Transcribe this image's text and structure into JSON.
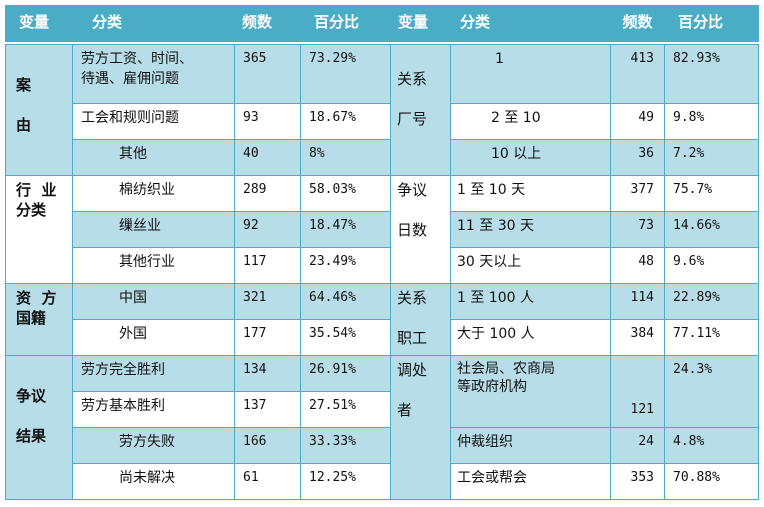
{
  "header": {
    "left": {
      "variable": "变量",
      "category": "分类",
      "count": "频数",
      "percent": "百分比"
    },
    "right": {
      "variable": "变量",
      "category": "分类",
      "count": "频数",
      "percent": "百分比"
    }
  },
  "left": [
    {
      "variable": "案\n\n由",
      "rows": [
        {
          "category": "劳方工资、时间、\n待遇、雇佣问题",
          "count": "365",
          "percent": "73.29%"
        },
        {
          "category": "工会和规则问题",
          "count": "93",
          "percent": "18.67%"
        },
        {
          "category": "其他",
          "count": "40",
          "percent": "8%"
        }
      ]
    },
    {
      "variable": "行  业\n分类",
      "rows": [
        {
          "category": "棉纺织业",
          "count": "289",
          "percent": "58.03%"
        },
        {
          "category": "缫丝业",
          "count": "92",
          "percent": "18.47%"
        },
        {
          "category": "其他行业",
          "count": "117",
          "percent": "23.49%"
        }
      ]
    },
    {
      "variable": "资  方\n国籍",
      "rows": [
        {
          "category": "中国",
          "count": "321",
          "percent": "64.46%"
        },
        {
          "category": "外国",
          "count": "177",
          "percent": "35.54%"
        }
      ]
    },
    {
      "variable": "争议\n\n结果",
      "rows": [
        {
          "category": "劳方完全胜利",
          "count": "134",
          "percent": "26.91%"
        },
        {
          "category": "劳方基本胜利",
          "count": "137",
          "percent": "27.51%"
        },
        {
          "category": "劳方失败",
          "count": "166",
          "percent": "33.33%"
        },
        {
          "category": "尚未解决",
          "count": "61",
          "percent": "12.25%"
        }
      ]
    }
  ],
  "right": [
    {
      "variable": "\n关系\n\n厂号",
      "rows": [
        {
          "category": "1",
          "count": "413",
          "percent": "82.93%"
        },
        {
          "category": "2 至 10",
          "count": "49",
          "percent": "9.8%"
        },
        {
          "category": "10 以上",
          "count": "36",
          "percent": "7.2%"
        }
      ]
    },
    {
      "variable": "争议\n\n日数",
      "rows": [
        {
          "category": "1 至 10 天",
          "count": "377",
          "percent": "75.7%"
        },
        {
          "category": "11 至 30 天",
          "count": "73",
          "percent": "14.66%"
        },
        {
          "category": "30 天以上",
          "count": "48",
          "percent": "9.6%"
        }
      ]
    },
    {
      "variable": "关系\n\n职工",
      "rows": [
        {
          "category": "1 至 100 人",
          "count": "114",
          "percent": "22.89%"
        },
        {
          "category": "大于 100 人",
          "count": "384",
          "percent": "77.11%"
        }
      ]
    },
    {
      "variable": "调处\n\n者",
      "rows": [
        {
          "category": "社会局、农商局\n等政府机构",
          "count": "\n\n121",
          "percent": "24.3%"
        },
        {
          "category": "仲裁组织",
          "count": "24",
          "percent": "4.8%"
        },
        {
          "category": "工会或帮会",
          "count": "353",
          "percent": "70.88%"
        }
      ]
    }
  ]
}
